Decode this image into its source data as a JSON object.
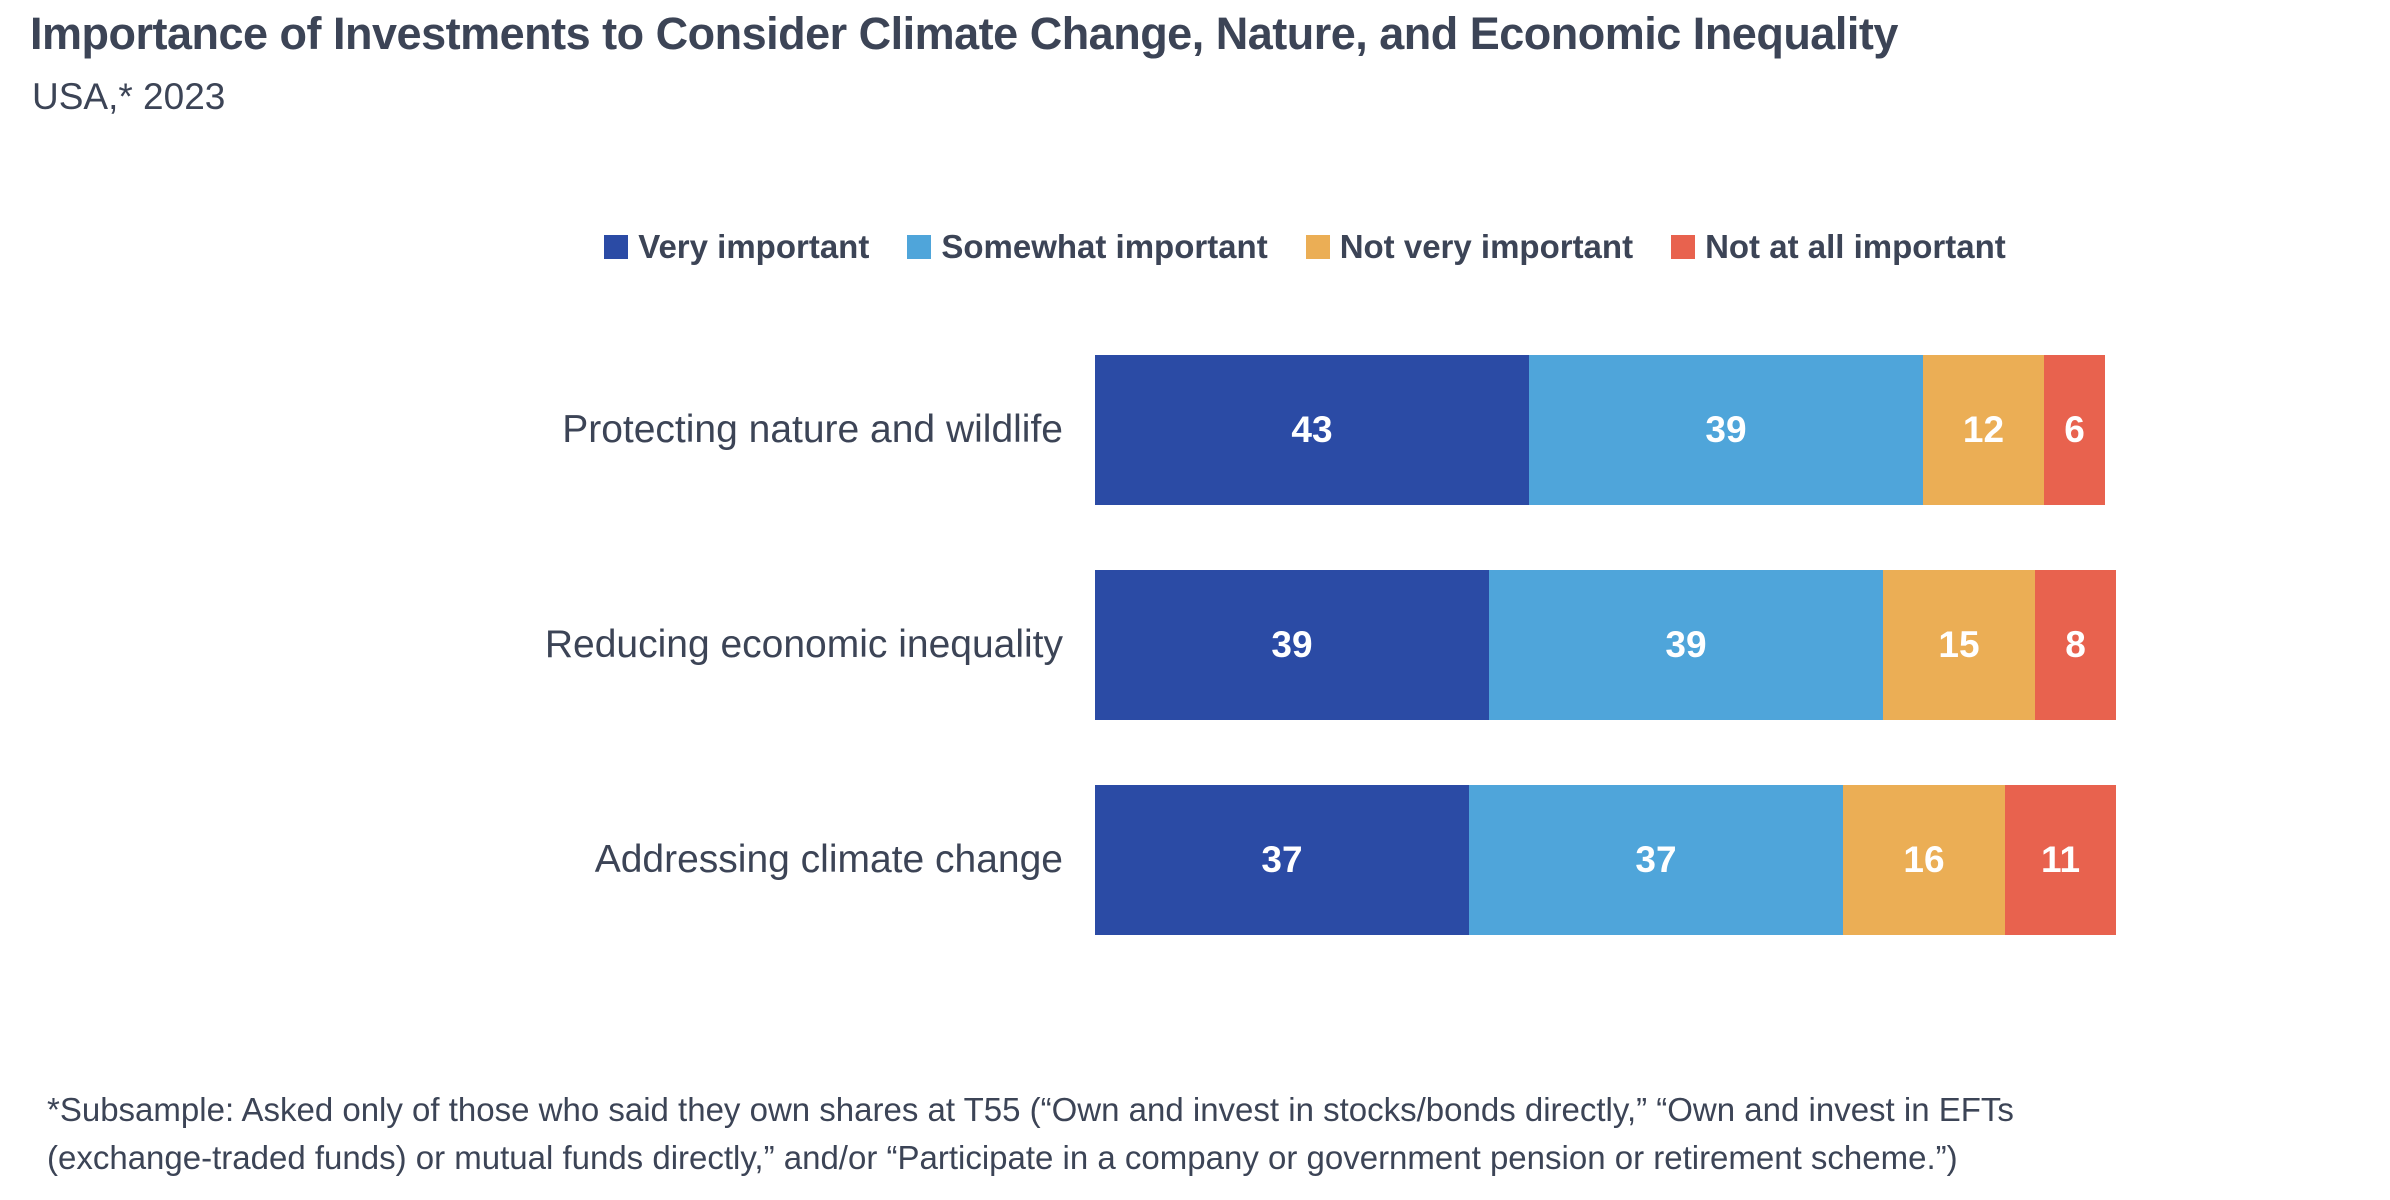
{
  "header": {
    "title": "Importance of Investments to Consider Climate Change, Nature, and Economic Inequality",
    "subtitle": "USA,* 2023"
  },
  "chart_data": {
    "type": "bar",
    "variant": "horizontal-stacked",
    "unit": "percent",
    "xlim": [
      0,
      101
    ],
    "grid": false,
    "legend_position": "top-center",
    "value_label_style": "white-bold-inside",
    "categories": [
      "Protecting nature and wildlife",
      "Reducing economic inequality",
      "Addressing climate change"
    ],
    "series": [
      {
        "name": "Very important",
        "color": "#2B4BA5",
        "values": [
          43,
          39,
          37
        ]
      },
      {
        "name": "Somewhat important",
        "color": "#4FA5DA",
        "values": [
          39,
          39,
          37
        ]
      },
      {
        "name": "Not very important",
        "color": "#EBAE55",
        "values": [
          12,
          15,
          16
        ]
      },
      {
        "name": "Not at all important",
        "color": "#E8624E",
        "values": [
          6,
          8,
          11
        ]
      }
    ]
  },
  "footnote": {
    "line1": "*Subsample: Asked only of those who said they own shares at T55 (“Own and invest in stocks/bonds directly,” “Own and invest in EFTs",
    "line2": "(exchange-traded funds) or mutual funds directly,” and/or “Participate in a company or government pension or retirement scheme.”)"
  },
  "colors": {
    "text": "#3C4456",
    "background": "#FFFFFF"
  }
}
